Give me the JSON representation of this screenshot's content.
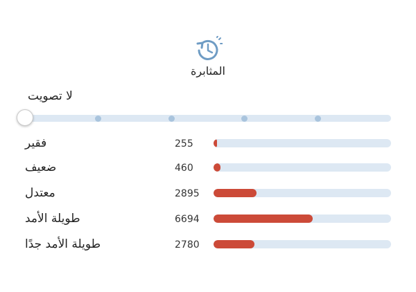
{
  "header": {
    "icon": "clock-with-circular-arrow-icon",
    "title": "المثابرة"
  },
  "vote": {
    "label": "لا تصويت",
    "slider_value_fraction": 0,
    "slider_steps": 6
  },
  "ratings": {
    "max_count": 12000,
    "rows": [
      {
        "label": "فقير",
        "count": "255",
        "value": 255
      },
      {
        "label": "ضعيف",
        "count": "460",
        "value": 460
      },
      {
        "label": "معتدل",
        "count": "2895",
        "value": 2895
      },
      {
        "label": "طويلة الأمد",
        "count": "6694",
        "value": 6694
      },
      {
        "label": "طويلة الأمد جدًا",
        "count": "2780",
        "value": 2780
      }
    ]
  },
  "colors": {
    "bar_fill": "#cc4a38",
    "bar_track": "#dde8f3",
    "icon": "#6f9cc4"
  }
}
